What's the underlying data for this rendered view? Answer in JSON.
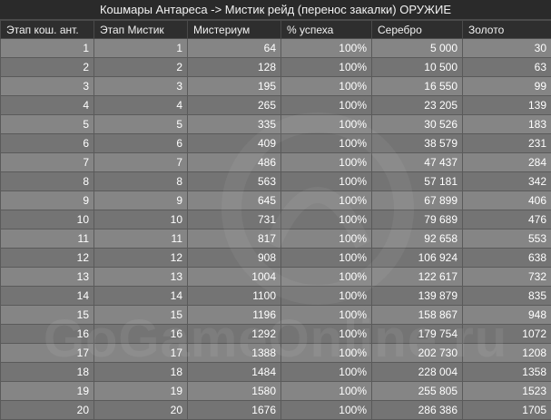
{
  "title": "Кошмары Антареса -> Мистик рейд (перенос закалки) ОРУЖИЕ",
  "watermark": "GoGameOnline.ru",
  "columns": [
    "Этап кош. ант.",
    "Этап Мистик",
    "Мистериум",
    "% успеха",
    "Серебро",
    "Золото"
  ],
  "rows": [
    [
      "1",
      "1",
      "64",
      "100%",
      "5 000",
      "30"
    ],
    [
      "2",
      "2",
      "128",
      "100%",
      "10 500",
      "63"
    ],
    [
      "3",
      "3",
      "195",
      "100%",
      "16 550",
      "99"
    ],
    [
      "4",
      "4",
      "265",
      "100%",
      "23 205",
      "139"
    ],
    [
      "5",
      "5",
      "335",
      "100%",
      "30 526",
      "183"
    ],
    [
      "6",
      "6",
      "409",
      "100%",
      "38 579",
      "231"
    ],
    [
      "7",
      "7",
      "486",
      "100%",
      "47 437",
      "284"
    ],
    [
      "8",
      "8",
      "563",
      "100%",
      "57 181",
      "342"
    ],
    [
      "9",
      "9",
      "645",
      "100%",
      "67 899",
      "406"
    ],
    [
      "10",
      "10",
      "731",
      "100%",
      "79 689",
      "476"
    ],
    [
      "11",
      "11",
      "817",
      "100%",
      "92 658",
      "553"
    ],
    [
      "12",
      "12",
      "908",
      "100%",
      "106 924",
      "638"
    ],
    [
      "13",
      "13",
      "1004",
      "100%",
      "122 617",
      "732"
    ],
    [
      "14",
      "14",
      "1100",
      "100%",
      "139 879",
      "835"
    ],
    [
      "15",
      "15",
      "1196",
      "100%",
      "158 867",
      "948"
    ],
    [
      "16",
      "16",
      "1292",
      "100%",
      "179 754",
      "1072"
    ],
    [
      "17",
      "17",
      "1388",
      "100%",
      "202 730",
      "1208"
    ],
    [
      "18",
      "18",
      "1484",
      "100%",
      "228 004",
      "1358"
    ],
    [
      "19",
      "19",
      "1580",
      "100%",
      "255 805",
      "1523"
    ],
    [
      "20",
      "20",
      "1676",
      "100%",
      "286 386",
      "1705"
    ]
  ]
}
